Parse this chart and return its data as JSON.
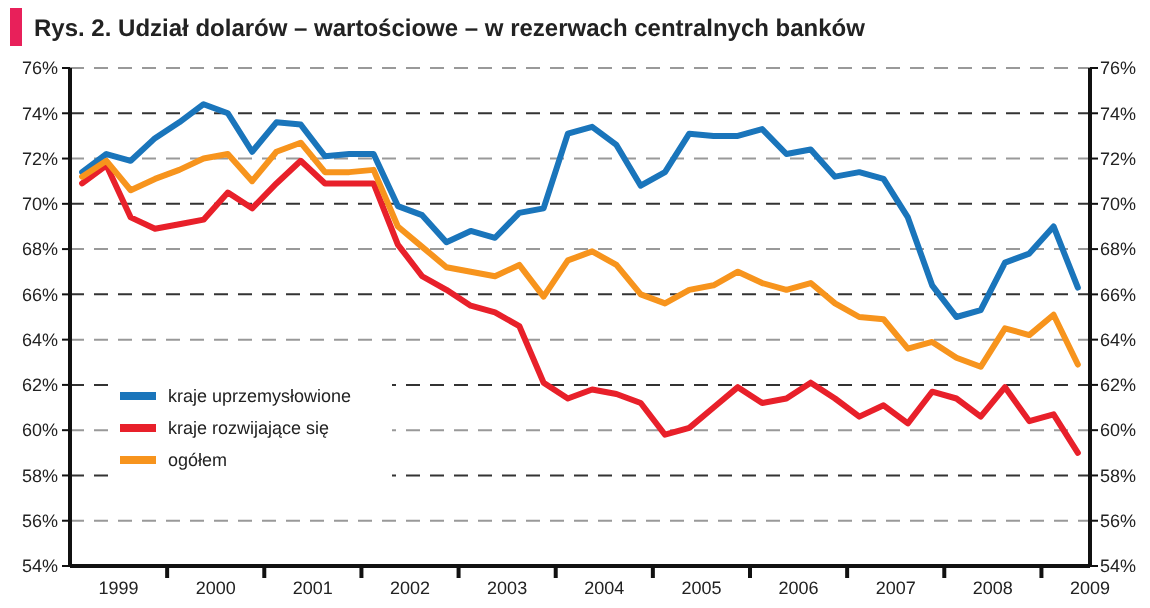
{
  "chart_data": {
    "type": "line",
    "title": "Rys. 2. Udział dolarów – wartościowe – w rezerwach centralnych banków",
    "x": [
      1999.125,
      1999.375,
      1999.625,
      1999.875,
      2000.125,
      2000.375,
      2000.625,
      2000.875,
      2001.125,
      2001.375,
      2001.625,
      2001.875,
      2002.125,
      2002.375,
      2002.625,
      2002.875,
      2003.125,
      2003.375,
      2003.625,
      2003.875,
      2004.125,
      2004.375,
      2004.625,
      2004.875,
      2005.125,
      2005.375,
      2005.625,
      2005.875,
      2006.125,
      2006.375,
      2006.625,
      2006.875,
      2007.125,
      2007.375,
      2007.625,
      2007.875,
      2008.125,
      2008.375,
      2008.625,
      2008.875,
      2009.125,
      2009.375
    ],
    "series": [
      {
        "name": "kraje uprzemysłowione",
        "color": "#1a75bb",
        "values": [
          71.4,
          72.2,
          71.9,
          72.9,
          73.6,
          74.4,
          74.0,
          72.3,
          73.6,
          73.5,
          72.1,
          72.2,
          72.2,
          69.9,
          69.5,
          68.3,
          68.8,
          68.5,
          69.6,
          69.8,
          73.1,
          73.4,
          72.6,
          70.8,
          71.4,
          73.1,
          73.0,
          73.0,
          73.3,
          72.2,
          72.4,
          71.2,
          71.4,
          71.1,
          69.4,
          66.4,
          65.0,
          65.3,
          67.4,
          67.8,
          69.0,
          66.3
        ]
      },
      {
        "name": "kraje rozwijające się",
        "color": "#e8202a",
        "values": [
          70.9,
          71.7,
          69.4,
          68.9,
          69.1,
          69.3,
          70.5,
          69.8,
          70.9,
          71.9,
          70.9,
          70.9,
          70.9,
          68.2,
          66.8,
          66.2,
          65.5,
          65.2,
          64.6,
          62.1,
          61.4,
          61.8,
          61.6,
          61.2,
          59.8,
          60.1,
          61.0,
          61.9,
          61.2,
          61.4,
          62.1,
          61.4,
          60.6,
          61.1,
          60.3,
          61.7,
          61.4,
          60.6,
          61.9,
          60.4,
          60.7,
          59.0
        ]
      },
      {
        "name": "ogółem",
        "color": "#f7941d",
        "values": [
          71.2,
          71.9,
          70.6,
          71.1,
          71.5,
          72.0,
          72.2,
          71.0,
          72.3,
          72.7,
          71.4,
          71.4,
          71.5,
          69.0,
          68.1,
          67.2,
          67.0,
          66.8,
          67.3,
          65.9,
          67.5,
          67.9,
          67.3,
          66.0,
          65.6,
          66.2,
          66.4,
          67.0,
          66.5,
          66.2,
          66.5,
          65.6,
          65.0,
          64.9,
          63.6,
          63.9,
          63.2,
          62.8,
          64.5,
          64.2,
          65.1,
          62.9
        ]
      }
    ],
    "xlim": [
      1999,
      2009.5
    ],
    "xticks": [
      {
        "value": 1999.5,
        "label": "1999"
      },
      {
        "value": 2000,
        "label": null
      },
      {
        "value": 2000.5,
        "label": "2000"
      },
      {
        "value": 2001,
        "label": null
      },
      {
        "value": 2001.5,
        "label": "2001"
      },
      {
        "value": 2002,
        "label": null
      },
      {
        "value": 2002.5,
        "label": "2002"
      },
      {
        "value": 2003,
        "label": null
      },
      {
        "value": 2003.5,
        "label": "2003"
      },
      {
        "value": 2004,
        "label": null
      },
      {
        "value": 2004.5,
        "label": "2004"
      },
      {
        "value": 2005,
        "label": null
      },
      {
        "value": 2005.5,
        "label": "2005"
      },
      {
        "value": 2006,
        "label": null
      },
      {
        "value": 2006.5,
        "label": "2006"
      },
      {
        "value": 2007,
        "label": null
      },
      {
        "value": 2007.5,
        "label": "2007"
      },
      {
        "value": 2008,
        "label": null
      },
      {
        "value": 2008.5,
        "label": "2008"
      },
      {
        "value": 2009,
        "label": null
      },
      {
        "value": 2009.5,
        "label": "2009"
      }
    ],
    "ylim": [
      54,
      76
    ],
    "yticks": [
      {
        "value": 54,
        "label": "54%"
      },
      {
        "value": 56,
        "label": "56%"
      },
      {
        "value": 58,
        "label": "58%"
      },
      {
        "value": 60,
        "label": "60%"
      },
      {
        "value": 62,
        "label": "62%"
      },
      {
        "value": 64,
        "label": "64%"
      },
      {
        "value": 66,
        "label": "66%"
      },
      {
        "value": 68,
        "label": "68%"
      },
      {
        "value": 70,
        "label": "70%"
      },
      {
        "value": 72,
        "label": "72%"
      },
      {
        "value": 74,
        "label": "74%"
      },
      {
        "value": 76,
        "label": "76%"
      }
    ],
    "y2lim": [
      54,
      76
    ],
    "y2ticks": [
      {
        "value": 54,
        "label": "54%"
      },
      {
        "value": 56,
        "label": "56%"
      },
      {
        "value": 58,
        "label": "58%"
      },
      {
        "value": 60,
        "label": "60%"
      },
      {
        "value": 62,
        "label": "62%"
      },
      {
        "value": 64,
        "label": "64%"
      },
      {
        "value": 66,
        "label": "66%"
      },
      {
        "value": 68,
        "label": "68%"
      },
      {
        "value": 70,
        "label": "70%"
      },
      {
        "value": 72,
        "label": "72%"
      },
      {
        "value": 74,
        "label": "74%"
      },
      {
        "value": 76,
        "label": "76%"
      }
    ],
    "grid": "y",
    "legend": "bottom left",
    "marker": "none",
    "line_style": "solid"
  }
}
